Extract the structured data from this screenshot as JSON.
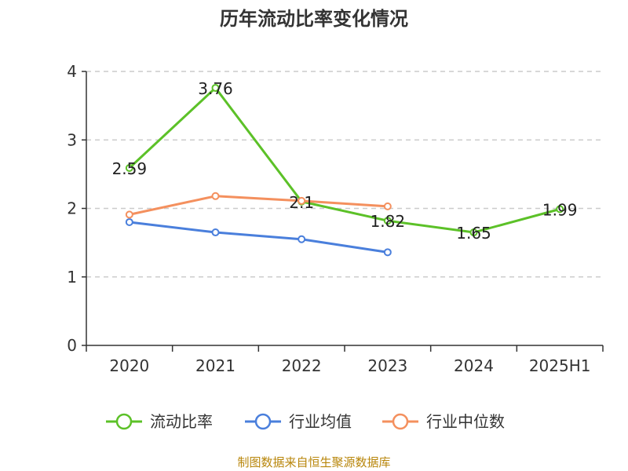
{
  "chart_data": {
    "type": "line",
    "title": "历年流动比率变化情况",
    "categories": [
      "2020",
      "2021",
      "2022",
      "2023",
      "2024",
      "2025H1"
    ],
    "ylim": [
      0,
      4
    ],
    "yticks": [
      0,
      1,
      2,
      3,
      4
    ],
    "grid": true,
    "legend_position": "bottom",
    "series": [
      {
        "name": "流动比率",
        "color": "#5cc128",
        "values": [
          2.59,
          3.76,
          2.1,
          1.82,
          1.65,
          1.99
        ],
        "labels": [
          "2.59",
          "3.76",
          "2.1",
          "1.82",
          "1.65",
          "1.99"
        ]
      },
      {
        "name": "行业均值",
        "color": "#4a7fdc",
        "values": [
          1.8,
          1.65,
          1.55,
          1.36,
          null,
          null
        ]
      },
      {
        "name": "行业中位数",
        "color": "#f4905e",
        "values": [
          1.91,
          2.18,
          2.11,
          2.03,
          null,
          null
        ]
      }
    ]
  },
  "source": "制图数据来自恒生聚源数据库"
}
